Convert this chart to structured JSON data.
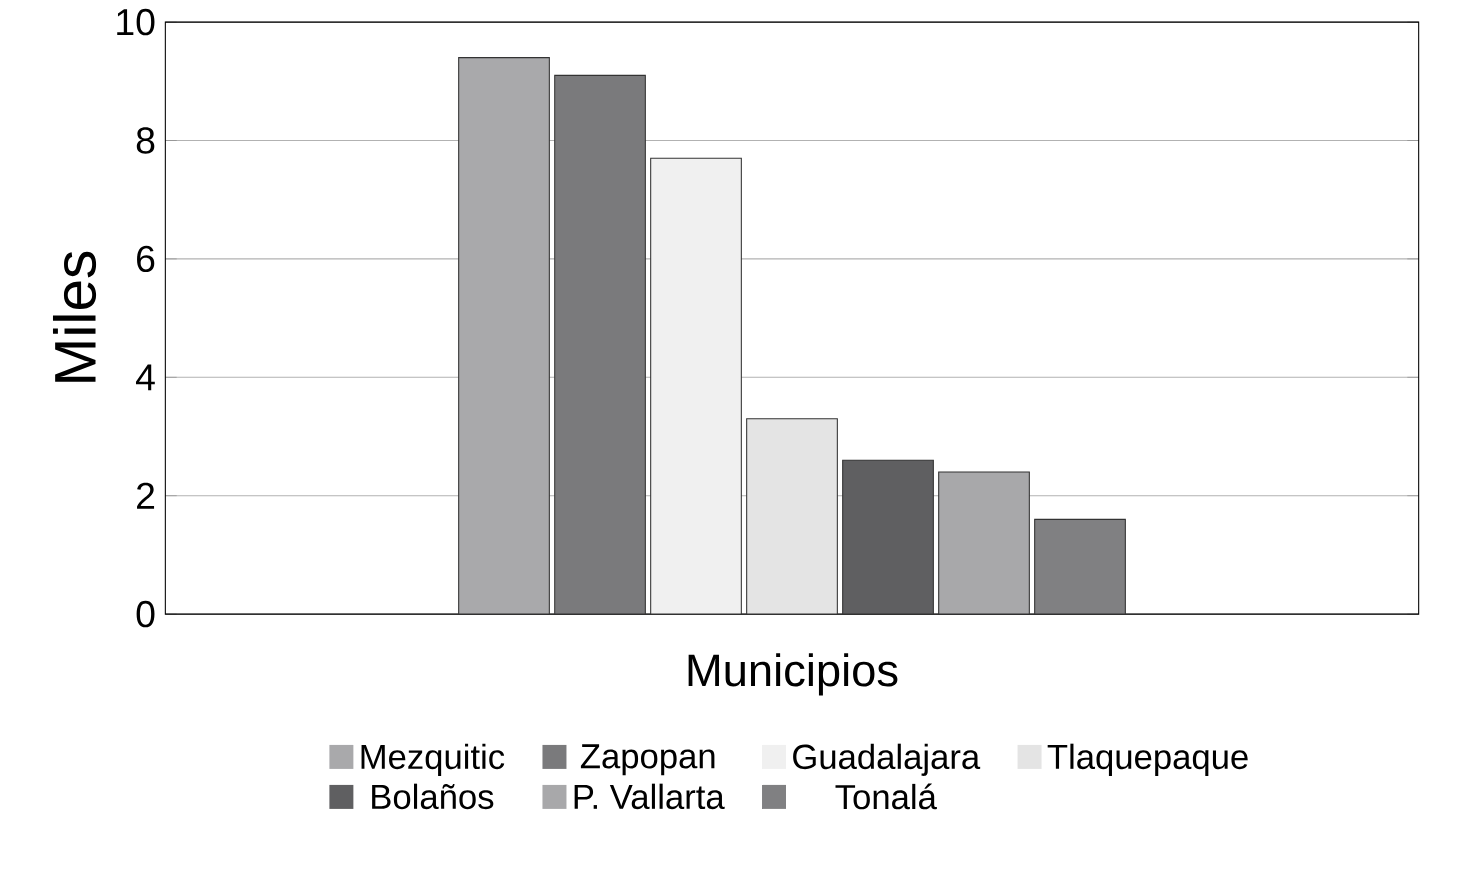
{
  "chart_data": {
    "type": "bar",
    "xlabel": "Municipios",
    "ylabel": "Miles",
    "categories": [
      null
    ],
    "series": [
      {
        "name": "Mezquitic",
        "color": "#a9a9ab",
        "values": [
          9.4
        ]
      },
      {
        "name": "Zapopan",
        "color": "#7a7a7c",
        "values": [
          9.1
        ]
      },
      {
        "name": "Guadalajara",
        "color": "#f0f0f0",
        "values": [
          7.7
        ]
      },
      {
        "name": "Tlaquepaque",
        "color": "#e4e4e4",
        "values": [
          3.3
        ]
      },
      {
        "name": "Bolaños",
        "color": "#5f5f61",
        "values": [
          2.6
        ]
      },
      {
        "name": "P. Vallarta",
        "color": "#a8a8aa",
        "values": [
          2.4
        ]
      },
      {
        "name": "Tonalá",
        "color": "#808082",
        "values": [
          1.6
        ]
      }
    ],
    "ylim": [
      0,
      10
    ],
    "yticks": [
      0,
      2,
      4,
      6,
      8,
      10
    ],
    "grid": "y",
    "legend": "bottom"
  }
}
